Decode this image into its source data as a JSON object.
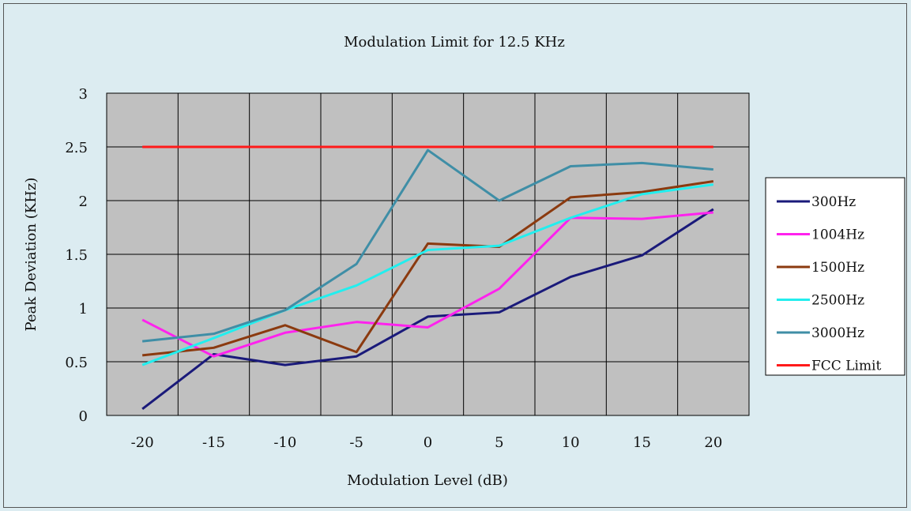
{
  "chart_data": {
    "type": "line",
    "title": "Modulation Limit for 12.5 KHz",
    "xlabel": "Modulation Level (dB)",
    "ylabel": "Peak Deviation (KHz)",
    "x": [
      -20,
      -15,
      -10,
      -5,
      0,
      5,
      10,
      15,
      20
    ],
    "x_tick_labels": [
      "-20",
      "-15",
      "-10",
      "-5",
      "0",
      "5",
      "10",
      "15",
      "20"
    ],
    "y_tick_labels": [
      "0",
      "0.5",
      "1",
      "1.5",
      "2",
      "2.5",
      "3"
    ],
    "ylim": [
      0,
      3
    ],
    "grid": true,
    "legend_position": "right",
    "plot_background": "#c0c0c0",
    "series": [
      {
        "name": "300Hz",
        "color": "#1a1a7a",
        "values": [
          0.06,
          0.57,
          0.47,
          0.55,
          0.92,
          0.96,
          1.29,
          1.49,
          1.92
        ]
      },
      {
        "name": "1004Hz",
        "color": "#ff22ee",
        "values": [
          0.89,
          0.55,
          0.77,
          0.87,
          0.82,
          1.18,
          1.84,
          1.83,
          1.89
        ]
      },
      {
        "name": "1500Hz",
        "color": "#8b3a0f",
        "values": [
          0.56,
          0.63,
          0.84,
          0.59,
          1.6,
          1.57,
          2.03,
          2.08,
          2.18
        ]
      },
      {
        "name": "2500Hz",
        "color": "#22eeee",
        "values": [
          0.47,
          0.72,
          0.98,
          1.21,
          1.54,
          1.58,
          1.84,
          2.06,
          2.15
        ]
      },
      {
        "name": "3000Hz",
        "color": "#3f8ea6",
        "values": [
          0.69,
          0.76,
          0.98,
          1.41,
          2.47,
          2.0,
          2.32,
          2.35,
          2.29
        ]
      },
      {
        "name": "FCC Limit",
        "color": "#ff1a1a",
        "values": [
          2.5,
          2.5,
          2.5,
          2.5,
          2.5,
          2.5,
          2.5,
          2.5,
          2.5
        ]
      }
    ]
  }
}
